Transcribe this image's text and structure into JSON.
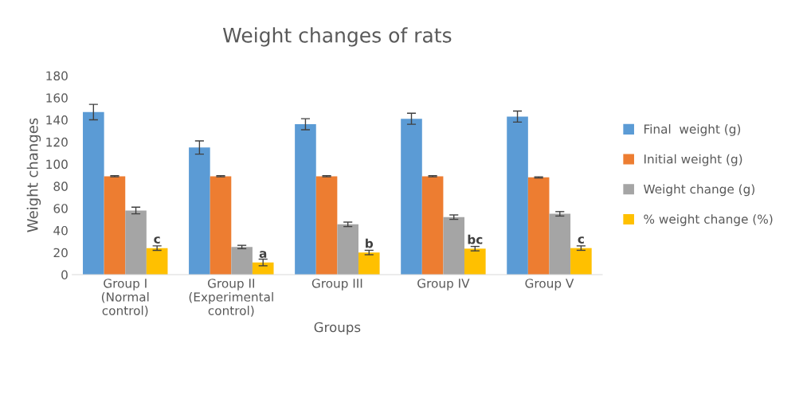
{
  "chart_data": {
    "type": "bar",
    "title": "Weight changes of rats",
    "xlabel": "Groups",
    "ylabel": "Weight changes",
    "categories": [
      "Group I\n(Normal\ncontrol)",
      "Group II\n(Experimental\ncontrol)",
      "Group III",
      "Group IV",
      "Group V"
    ],
    "series": [
      {
        "name": "Final  weight (g)",
        "color": "#5b9bd5",
        "values": [
          147,
          115,
          136,
          141,
          143
        ],
        "errors": [
          7,
          6,
          5,
          5,
          5
        ]
      },
      {
        "name": "Initial weight (g)",
        "color": "#ed7d31",
        "values": [
          89,
          89,
          89,
          89,
          88
        ],
        "errors": [
          0.5,
          0.5,
          0.5,
          0.5,
          0.5
        ]
      },
      {
        "name": "Weight change (g)",
        "color": "#a5a5a5",
        "values": [
          58,
          25,
          45.5,
          52,
          55
        ],
        "errors": [
          3,
          1.5,
          2,
          2,
          2
        ]
      },
      {
        "name": "% weight change (%)",
        "color": "#ffc000",
        "values": [
          24,
          11,
          20,
          23.5,
          24
        ],
        "errors": [
          2,
          3,
          2,
          2,
          2
        ]
      }
    ],
    "annotations": [
      {
        "text": "c",
        "x": "Group I\n(Normal\ncontrol)",
        "y": 24
      },
      {
        "text": "a",
        "x": "Group II\n(Experimental\ncontrol)",
        "y": 11
      },
      {
        "text": "b",
        "x": "Group III",
        "y": 20
      },
      {
        "text": "bc",
        "x": "Group IV",
        "y": 23.5
      },
      {
        "text": "c",
        "x": "Group V",
        "y": 24
      }
    ],
    "ylim": [
      0,
      180
    ],
    "yticks": [
      0,
      20,
      40,
      60,
      80,
      100,
      120,
      140,
      160,
      180
    ],
    "grid": false,
    "legend": "right"
  }
}
